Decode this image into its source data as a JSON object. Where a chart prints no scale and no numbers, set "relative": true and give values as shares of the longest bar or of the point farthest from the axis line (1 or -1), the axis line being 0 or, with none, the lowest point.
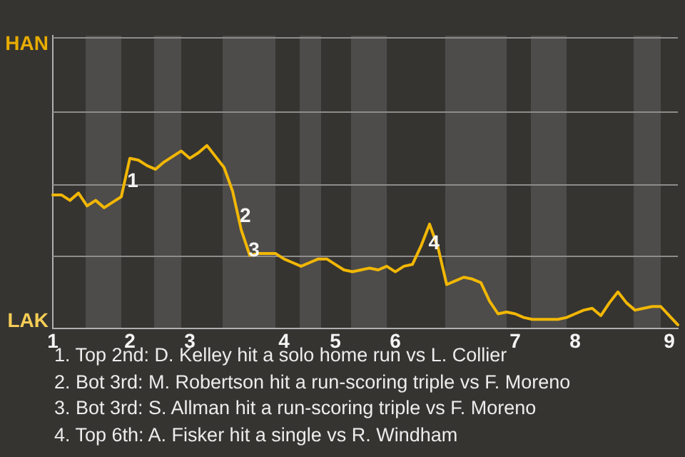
{
  "chart_data": {
    "type": "line",
    "relative": true,
    "categories": [
      "1",
      null,
      null,
      null,
      null,
      null,
      null,
      null,
      null,
      "2",
      null,
      null,
      null,
      null,
      null,
      null,
      "3",
      null,
      null,
      null,
      null,
      null,
      null,
      null,
      null,
      null,
      null,
      "4",
      null,
      null,
      null,
      null,
      null,
      "5",
      null,
      null,
      null,
      null,
      null,
      null,
      "6",
      null,
      null,
      null,
      null,
      null,
      null,
      null,
      null,
      null,
      null,
      null,
      null,
      null,
      "7",
      null,
      null,
      null,
      null,
      null,
      null,
      "8",
      null,
      null,
      null,
      null,
      null,
      null,
      null,
      null,
      null,
      null,
      "9",
      null
    ],
    "series": [
      {
        "color": "#f2b705",
        "values": [
          0.73,
          0.73,
          0.7,
          0.74,
          0.67,
          0.7,
          0.66,
          0.69,
          0.72,
          0.93,
          0.92,
          0.89,
          0.87,
          0.91,
          0.94,
          0.97,
          0.93,
          0.96,
          1,
          0.94,
          0.88,
          0.75,
          0.54,
          0.4,
          0.41,
          0.41,
          0.41,
          0.38,
          0.36,
          0.34,
          0.36,
          0.38,
          0.38,
          0.35,
          0.32,
          0.31,
          0.32,
          0.33,
          0.32,
          0.34,
          0.31,
          0.34,
          0.35,
          0.45,
          0.57,
          0.44,
          0.24,
          0.26,
          0.28,
          0.27,
          0.25,
          0.15,
          0.08,
          0.09,
          0.08,
          0.06,
          0.05,
          0.05,
          0.05,
          0.05,
          0.06,
          0.08,
          0.1,
          0.11,
          0.07,
          0.14,
          0.2,
          0.14,
          0.1,
          0.11,
          0.12,
          0.12,
          0.07,
          0.02
        ]
      }
    ],
    "ref_lines": [
      {
        "axis": "y",
        "value": 0.4,
        "color": "#8d8c8a"
      },
      {
        "axis": "y",
        "value": 0.79,
        "color": "#8d8c8a"
      },
      {
        "axis": "y",
        "value": 1.19,
        "color": "#8d8c8a"
      },
      {
        "axis": "y",
        "value": 1.59,
        "color": "#8d8c8a"
      }
    ],
    "legend": false,
    "marker": "none",
    "line_style": "solid",
    "annotations": [
      "HAN",
      "LAK",
      "1",
      "2",
      "3",
      "4",
      "1. Top 2nd: D. Kelley hit a solo home run vs L. Collier",
      "2. Bot 3rd: M. Robertson hit a run-scoring triple vs F. Moreno",
      "3. Bot 3rd: S. Allman hit a run-scoring triple vs F. Moreno",
      "4. Top 6th: A. Fisker hit a single vs R. Windham"
    ]
  }
}
